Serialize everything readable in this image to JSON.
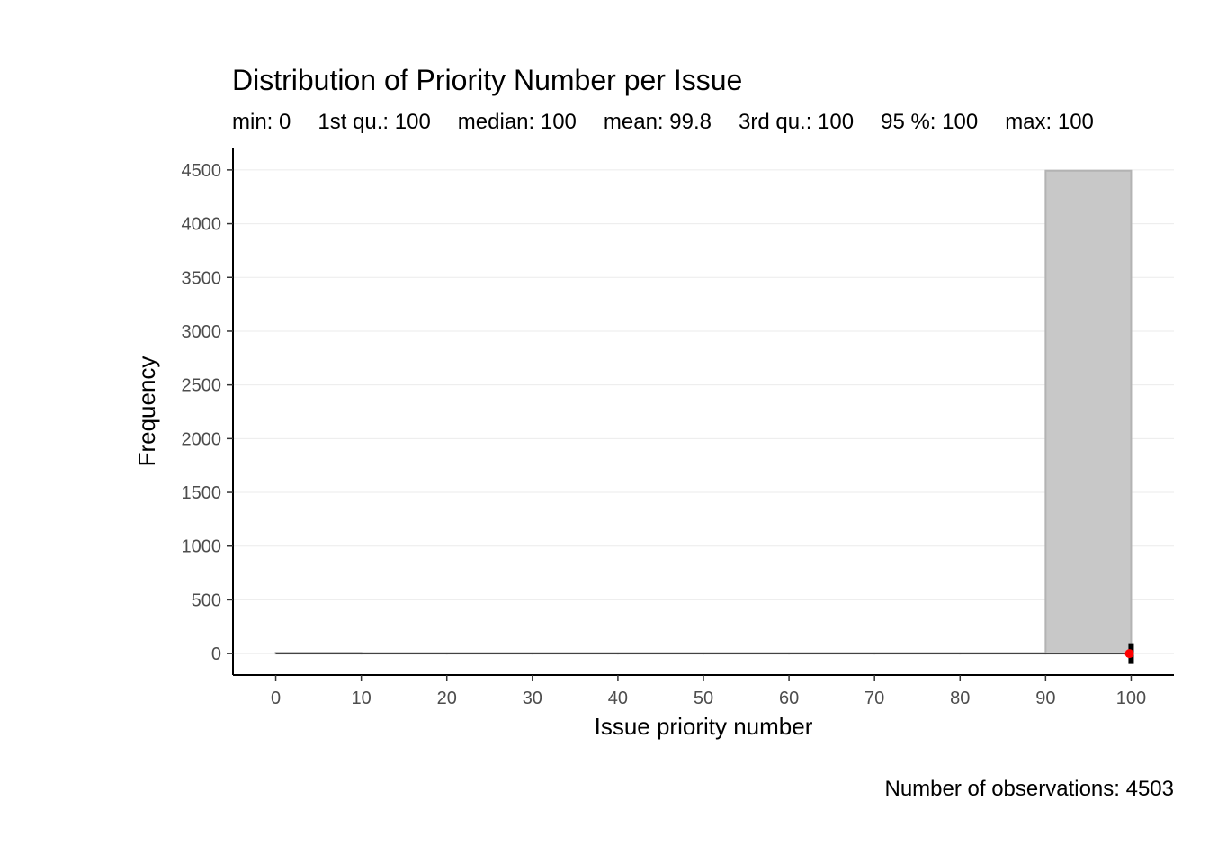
{
  "chart_data": {
    "type": "bar",
    "title": "Distribution of Priority Number per Issue",
    "stats": [
      {
        "label": "min: 0"
      },
      {
        "label": "1st qu.: 100"
      },
      {
        "label": "median: 100"
      },
      {
        "label": "mean: 99.8"
      },
      {
        "label": "3rd qu.: 100"
      },
      {
        "label": "95 %: 100"
      },
      {
        "label": "max: 100"
      }
    ],
    "xlabel": "Issue priority number",
    "ylabel": "Frequency",
    "caption": "Number of observations: 4503",
    "xlim": [
      -5,
      105
    ],
    "ylim": [
      -200,
      4700
    ],
    "x_ticks": [
      0,
      10,
      20,
      30,
      40,
      50,
      60,
      70,
      80,
      90,
      100
    ],
    "y_ticks": [
      0,
      500,
      1000,
      1500,
      2000,
      2500,
      3000,
      3500,
      4000,
      4500
    ],
    "bins": [
      {
        "start": 0,
        "end": 10,
        "count": 8
      },
      {
        "start": 10,
        "end": 20,
        "count": 0
      },
      {
        "start": 20,
        "end": 30,
        "count": 0
      },
      {
        "start": 30,
        "end": 40,
        "count": 0
      },
      {
        "start": 40,
        "end": 50,
        "count": 0
      },
      {
        "start": 50,
        "end": 60,
        "count": 1
      },
      {
        "start": 60,
        "end": 70,
        "count": 0
      },
      {
        "start": 70,
        "end": 80,
        "count": 1
      },
      {
        "start": 80,
        "end": 90,
        "count": 0
      },
      {
        "start": 90,
        "end": 100,
        "count": 4493
      }
    ],
    "boxplot": {
      "min": 0,
      "q1": 100,
      "median": 100,
      "q3": 100,
      "max": 100,
      "mean": 99.8
    },
    "grid": true,
    "colors": {
      "bar_fill": "#c8c8c8",
      "bar_stroke": "#b3b3b3",
      "mean_point": "#ff0000",
      "box": "#000000",
      "grid": "#ebebeb"
    }
  }
}
